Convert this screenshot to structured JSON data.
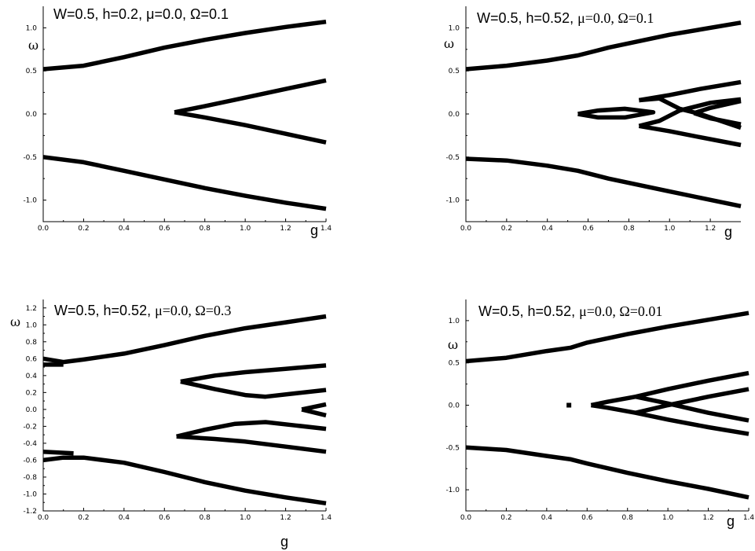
{
  "chart_data": [
    {
      "type": "line",
      "title_parts": [
        "W=0.5, h=0.2, ",
        "μ=0.0, Ω=0.1"
      ],
      "title_serif_part": false,
      "xlabel": "g",
      "ylabel": "ω",
      "xlim": [
        0,
        1.4
      ],
      "ylim": [
        -1.25,
        1.25
      ],
      "xticks": [
        "0.0",
        "0.2",
        "0.4",
        "0.6",
        "0.8",
        "1.0",
        "1.2",
        "1.4"
      ],
      "yticks": [
        "1.0",
        "0.5",
        "0.0",
        "-0.5",
        "-1.0"
      ],
      "series": [
        {
          "points": [
            [
              0.0,
              0.52
            ],
            [
              0.2,
              0.56
            ],
            [
              0.4,
              0.66
            ],
            [
              0.6,
              0.77
            ],
            [
              0.8,
              0.86
            ],
            [
              1.0,
              0.94
            ],
            [
              1.2,
              1.01
            ],
            [
              1.4,
              1.07
            ]
          ]
        },
        {
          "points": [
            [
              0.0,
              -0.5
            ],
            [
              0.2,
              -0.56
            ],
            [
              0.4,
              -0.66
            ],
            [
              0.6,
              -0.76
            ],
            [
              0.8,
              -0.86
            ],
            [
              1.0,
              -0.95
            ],
            [
              1.2,
              -1.03
            ],
            [
              1.4,
              -1.1
            ]
          ]
        },
        {
          "points": [
            [
              0.65,
              0.02
            ],
            [
              0.8,
              0.09
            ],
            [
              1.0,
              0.19
            ],
            [
              1.2,
              0.29
            ],
            [
              1.4,
              0.39
            ]
          ]
        },
        {
          "points": [
            [
              0.65,
              0.02
            ],
            [
              0.8,
              -0.04
            ],
            [
              1.0,
              -0.13
            ],
            [
              1.2,
              -0.23
            ],
            [
              1.4,
              -0.33
            ]
          ]
        }
      ]
    },
    {
      "type": "line",
      "title_parts": [
        "W=0.5, h=0.52, ",
        "μ=0.0, Ω=0.1"
      ],
      "title_serif_part": true,
      "xlabel": "g",
      "ylabel": "ω",
      "xlim": [
        0,
        1.35
      ],
      "ylim": [
        -1.25,
        1.25
      ],
      "xticks": [
        "0.0",
        "0.2",
        "0.4",
        "0.6",
        "0.8",
        "1.0",
        "1.2"
      ],
      "yticks": [
        "1.0",
        "0.5",
        "0.0",
        "-0.5",
        "-1.0"
      ],
      "series": [
        {
          "points": [
            [
              0.0,
              0.52
            ],
            [
              0.2,
              0.56
            ],
            [
              0.4,
              0.62
            ],
            [
              0.55,
              0.68
            ],
            [
              0.7,
              0.77
            ],
            [
              1.0,
              0.92
            ],
            [
              1.35,
              1.06
            ]
          ]
        },
        {
          "points": [
            [
              0.0,
              -0.52
            ],
            [
              0.2,
              -0.54
            ],
            [
              0.4,
              -0.6
            ],
            [
              0.55,
              -0.66
            ],
            [
              0.7,
              -0.75
            ],
            [
              1.0,
              -0.9
            ],
            [
              1.35,
              -1.07
            ]
          ]
        },
        {
          "points": [
            [
              0.55,
              0.0
            ],
            [
              0.65,
              0.04
            ],
            [
              0.78,
              0.06
            ],
            [
              0.92,
              0.02
            ],
            [
              0.78,
              -0.04
            ],
            [
              0.65,
              -0.04
            ],
            [
              0.55,
              0.0
            ]
          ]
        },
        {
          "points": [
            [
              0.85,
              0.16
            ],
            [
              0.95,
              0.18
            ],
            [
              1.05,
              0.06
            ],
            [
              1.15,
              0.0
            ],
            [
              1.35,
              -0.16
            ]
          ]
        },
        {
          "points": [
            [
              0.85,
              -0.14
            ],
            [
              0.95,
              -0.08
            ],
            [
              1.05,
              0.04
            ],
            [
              1.2,
              0.13
            ],
            [
              1.35,
              0.17
            ]
          ]
        },
        {
          "points": [
            [
              0.85,
              0.16
            ],
            [
              1.0,
              0.22
            ],
            [
              1.15,
              0.29
            ],
            [
              1.35,
              0.37
            ]
          ]
        },
        {
          "points": [
            [
              0.85,
              -0.14
            ],
            [
              1.0,
              -0.2
            ],
            [
              1.15,
              -0.27
            ],
            [
              1.35,
              -0.36
            ]
          ]
        },
        {
          "points": [
            [
              1.12,
              0.01
            ],
            [
              1.2,
              0.07
            ],
            [
              1.35,
              0.15
            ]
          ]
        },
        {
          "points": [
            [
              1.12,
              0.01
            ],
            [
              1.2,
              -0.05
            ],
            [
              1.35,
              -0.12
            ]
          ]
        }
      ]
    },
    {
      "type": "line",
      "title_parts": [
        "W=0.5, h=0.52, ",
        "μ=0.0, Ω=0.3"
      ],
      "title_serif_part": true,
      "xlabel": "g",
      "ylabel": "ω",
      "xlim": [
        0,
        1.4
      ],
      "ylim": [
        -1.2,
        1.3
      ],
      "xticks": [
        "0.0",
        "0.2",
        "0.4",
        "0.6",
        "0.8",
        "1.0",
        "1.2",
        "1.4"
      ],
      "yticks": [
        "1.2",
        "1.0",
        "0.8",
        "0.6",
        "0.4",
        "0.2",
        "0.0",
        "-0.2",
        "-0.4",
        "-0.6",
        "-0.8",
        "-1.0",
        "-1.2"
      ],
      "series": [
        {
          "points": [
            [
              0.0,
              0.6
            ],
            [
              0.1,
              0.56
            ],
            [
              0.2,
              0.59
            ],
            [
              0.4,
              0.66
            ],
            [
              0.6,
              0.76
            ],
            [
              0.8,
              0.87
            ],
            [
              1.0,
              0.96
            ],
            [
              1.2,
              1.03
            ],
            [
              1.4,
              1.1
            ]
          ]
        },
        {
          "points": [
            [
              0.0,
              0.53
            ],
            [
              0.1,
              0.53
            ]
          ]
        },
        {
          "points": [
            [
              0.0,
              -0.6
            ],
            [
              0.1,
              -0.57
            ],
            [
              0.2,
              -0.57
            ],
            [
              0.4,
              -0.63
            ],
            [
              0.6,
              -0.74
            ],
            [
              0.8,
              -0.86
            ],
            [
              1.0,
              -0.96
            ],
            [
              1.2,
              -1.04
            ],
            [
              1.4,
              -1.11
            ]
          ]
        },
        {
          "points": [
            [
              0.0,
              -0.5
            ],
            [
              0.15,
              -0.52
            ]
          ]
        },
        {
          "points": [
            [
              0.68,
              0.33
            ],
            [
              0.85,
              0.4
            ],
            [
              1.0,
              0.44
            ],
            [
              1.2,
              0.48
            ],
            [
              1.4,
              0.52
            ]
          ]
        },
        {
          "points": [
            [
              0.68,
              0.33
            ],
            [
              0.85,
              0.24
            ],
            [
              1.0,
              0.17
            ],
            [
              1.1,
              0.15
            ],
            [
              1.25,
              0.19
            ],
            [
              1.4,
              0.23
            ]
          ]
        },
        {
          "points": [
            [
              0.66,
              -0.32
            ],
            [
              0.8,
              -0.24
            ],
            [
              0.95,
              -0.17
            ],
            [
              1.1,
              -0.15
            ],
            [
              1.25,
              -0.19
            ],
            [
              1.4,
              -0.23
            ]
          ]
        },
        {
          "points": [
            [
              0.66,
              -0.32
            ],
            [
              0.85,
              -0.35
            ],
            [
              1.0,
              -0.38
            ],
            [
              1.2,
              -0.44
            ],
            [
              1.4,
              -0.5
            ]
          ]
        },
        {
          "points": [
            [
              1.28,
              0.0
            ],
            [
              1.4,
              0.06
            ]
          ]
        },
        {
          "points": [
            [
              1.28,
              0.0
            ],
            [
              1.4,
              -0.07
            ]
          ]
        }
      ]
    },
    {
      "type": "line",
      "title_parts": [
        "W=0.5, h=0.52, ",
        "μ=0.0, Ω=0.01"
      ],
      "title_serif_part": true,
      "xlabel": "g",
      "ylabel": "ω",
      "xlim": [
        0,
        1.4
      ],
      "ylim": [
        -1.25,
        1.25
      ],
      "xticks": [
        "0.0",
        "0.2",
        "0.4",
        "0.6",
        "0.8",
        "1.0",
        "1.2",
        "1.4"
      ],
      "yticks": [
        "1.0",
        "0.5",
        "0.0",
        "-0.5",
        "-1.0"
      ],
      "series": [
        {
          "points": [
            [
              0.0,
              0.52
            ],
            [
              0.2,
              0.56
            ],
            [
              0.4,
              0.64
            ],
            [
              0.52,
              0.68
            ],
            [
              0.6,
              0.74
            ],
            [
              0.8,
              0.84
            ],
            [
              1.0,
              0.93
            ],
            [
              1.2,
              1.01
            ],
            [
              1.4,
              1.09
            ]
          ]
        },
        {
          "points": [
            [
              0.0,
              -0.5
            ],
            [
              0.2,
              -0.53
            ],
            [
              0.4,
              -0.6
            ],
            [
              0.52,
              -0.64
            ],
            [
              0.6,
              -0.69
            ],
            [
              0.8,
              -0.8
            ],
            [
              1.0,
              -0.9
            ],
            [
              1.2,
              -0.99
            ],
            [
              1.4,
              -1.09
            ]
          ]
        },
        {
          "points": [
            [
              0.62,
              0.0
            ],
            [
              0.7,
              0.04
            ],
            [
              0.84,
              0.1
            ],
            [
              1.0,
              0.19
            ],
            [
              1.2,
              0.29
            ],
            [
              1.4,
              0.38
            ]
          ]
        },
        {
          "points": [
            [
              0.62,
              0.0
            ],
            [
              0.7,
              -0.03
            ],
            [
              0.84,
              -0.09
            ],
            [
              1.0,
              -0.17
            ],
            [
              1.2,
              -0.26
            ],
            [
              1.4,
              -0.34
            ]
          ]
        },
        {
          "points": [
            [
              0.84,
              0.1
            ],
            [
              1.0,
              0.02
            ],
            [
              1.2,
              -0.09
            ],
            [
              1.4,
              -0.18
            ]
          ]
        },
        {
          "points": [
            [
              0.84,
              -0.09
            ],
            [
              1.0,
              0.0
            ],
            [
              1.2,
              0.1
            ],
            [
              1.4,
              0.19
            ]
          ]
        }
      ],
      "markers": [
        [
          0.51,
          0.0
        ]
      ]
    }
  ]
}
